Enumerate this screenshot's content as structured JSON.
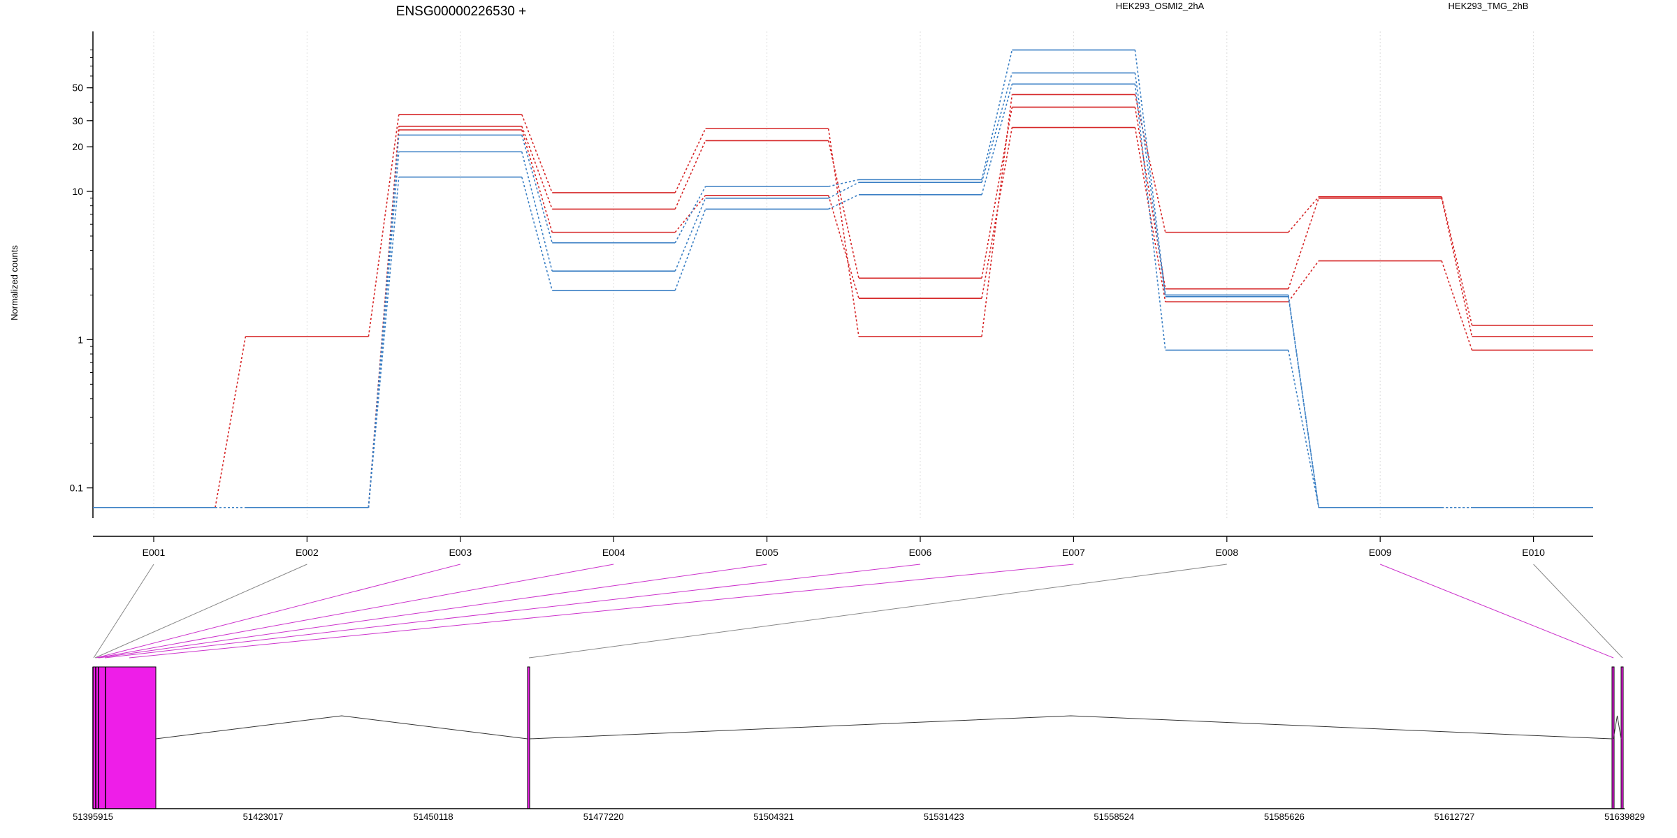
{
  "chart_data": {
    "type": "line",
    "title": "ENSG00000226530 +",
    "ylabel": "Normalized counts",
    "xlabel": "",
    "y_scale": "log",
    "ylim": [
      0.0625,
      120
    ],
    "y_ticks": [
      "0.1",
      "1",
      "10",
      "20",
      "30",
      "50"
    ],
    "categories": [
      "E001",
      "E002",
      "E003",
      "E004",
      "E005",
      "E006",
      "E007",
      "E008",
      "E009",
      "E010"
    ],
    "conditions": [
      {
        "name": "HEK293_OSMI2_2hA",
        "color": "#d62728"
      },
      {
        "name": "HEK293_TMG_2hB",
        "color": "#3a7fc4"
      }
    ],
    "series": [
      {
        "condition": 0,
        "values": [
          0,
          1.05,
          33,
          9.8,
          26.5,
          1.05,
          45,
          5.3,
          9.2,
          1.25
        ]
      },
      {
        "condition": 0,
        "values": [
          0,
          0,
          27.5,
          7.6,
          22,
          2.6,
          37,
          2.2,
          9,
          1.05
        ]
      },
      {
        "condition": 0,
        "values": [
          0,
          0,
          26,
          5.3,
          9.4,
          1.9,
          27,
          1.8,
          3.4,
          0.85
        ]
      },
      {
        "condition": 1,
        "values": [
          0,
          0,
          24,
          4.5,
          10.8,
          12,
          90,
          2.0,
          0,
          0
        ]
      },
      {
        "condition": 1,
        "values": [
          0,
          0,
          18.5,
          2.9,
          9,
          11.5,
          63,
          1.95,
          0,
          0
        ]
      },
      {
        "condition": 1,
        "values": [
          0,
          0,
          12.5,
          2.15,
          7.6,
          9.5,
          53,
          0.85,
          0,
          0
        ]
      }
    ],
    "grid": true,
    "legend": "top",
    "exon_mapping": {
      "highlighted_exons": [
        "E003",
        "E004",
        "E005",
        "E006",
        "E007",
        "E009"
      ],
      "highlight_color": "#cc33cc",
      "plain_color": "#888888"
    },
    "gene_model": {
      "start": 51395915,
      "end": 51639829,
      "axis_labels": [
        "51395915",
        "51423017",
        "51450118",
        "51477220",
        "51504321",
        "51531423",
        "51558524",
        "51585626",
        "51612727",
        "51639829"
      ],
      "exon_fill": "#ee1ee8"
    }
  }
}
